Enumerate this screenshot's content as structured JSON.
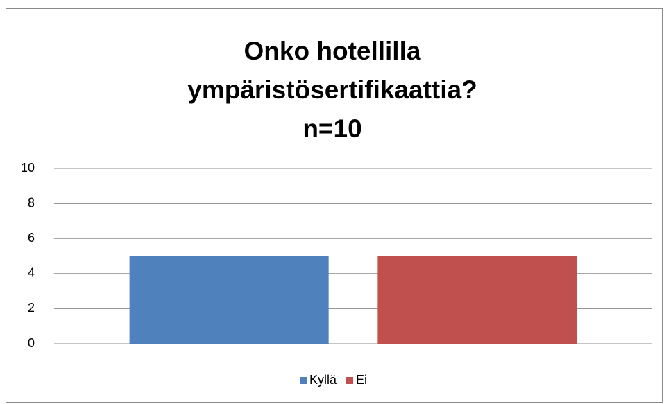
{
  "chart_data": {
    "type": "bar",
    "title": "Onko hotellilla ympäristösertifikaattia? n=10",
    "categories": [
      null
    ],
    "series": [
      {
        "name": "Kyllä",
        "color": "#4f81bd",
        "values": [
          5
        ]
      },
      {
        "name": "Ei",
        "color": "#c0504d",
        "values": [
          5
        ]
      }
    ],
    "ylim": [
      0,
      10
    ],
    "yticks": [
      0,
      2,
      4,
      6,
      8,
      10
    ],
    "grid": true,
    "legend": "bottom"
  }
}
